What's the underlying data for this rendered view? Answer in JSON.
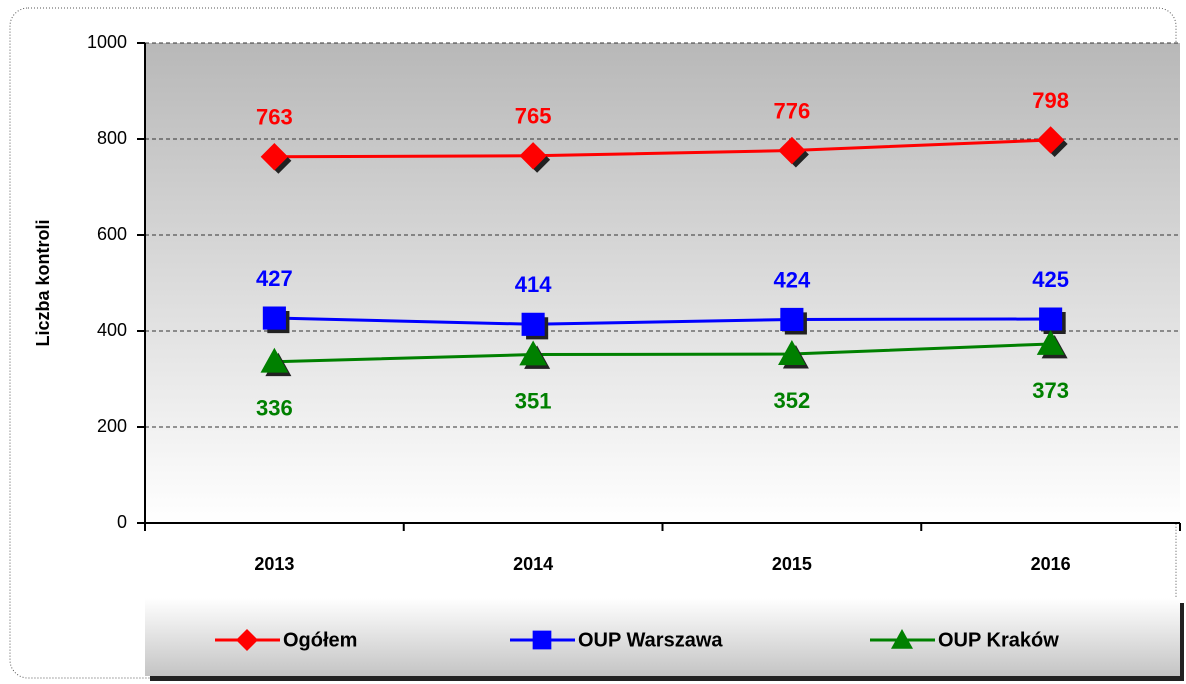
{
  "chart_data": {
    "type": "line",
    "y_label": "Liczba kontroli",
    "categories": [
      "2013",
      "2014",
      "2015",
      "2016"
    ],
    "series": [
      {
        "name": "Ogółem",
        "color": "#ff0000",
        "marker": "diamond",
        "label_position": "above",
        "values": [
          763,
          765,
          776,
          798
        ]
      },
      {
        "name": "OUP Warszawa",
        "color": "#0000ff",
        "marker": "square",
        "label_position": "above",
        "values": [
          427,
          414,
          424,
          425
        ]
      },
      {
        "name": "OUP Kraków",
        "color": "#008000",
        "marker": "triangle",
        "label_position": "below",
        "values": [
          336,
          351,
          352,
          373
        ]
      }
    ],
    "ylim": [
      0,
      1000
    ],
    "yticks": [
      0,
      200,
      400,
      600,
      800,
      1000
    ],
    "grid": true,
    "legend": "bottom"
  }
}
